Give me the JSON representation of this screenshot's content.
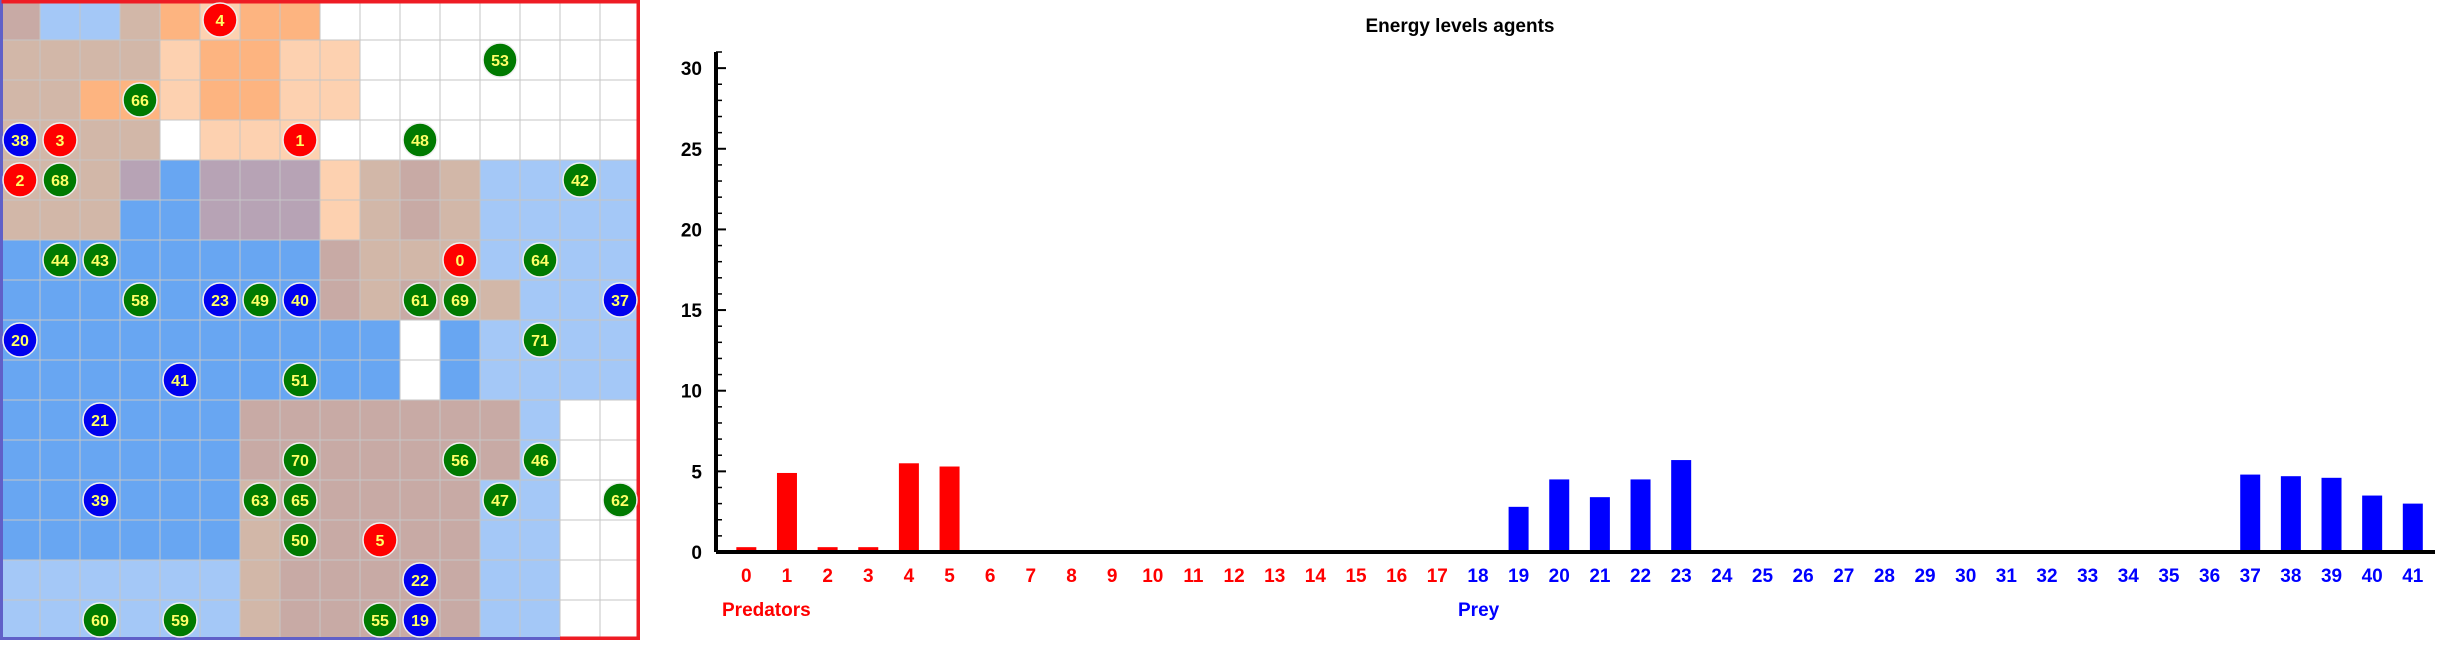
{
  "grid": {
    "rows": 16,
    "cols": 16,
    "colors": {
      "white": "#ffffff",
      "orange": "#fdb480",
      "light_orange": "#fdd1b0",
      "brown": "#d2b7a8",
      "taupe": "#c8aaa5",
      "blue": "#68a6f2",
      "light_blue": "#a4c8f7",
      "mauve": "#b7a3b5",
      "grid_line": "#c6c6c6",
      "border_red": "#ee1c24",
      "border_blue": "#6060c8",
      "predator": "#ff0000",
      "prey": "#0000ee",
      "plant": "#007a00",
      "agent_text": "#ffff66",
      "agent_outline": "#f0f0f0"
    },
    "cells": [
      "BLLTOtOOWWWWWWWW",
      "TTTTtOOttWWWWWWW",
      "TTOOtOOttWWWWWWW",
      "TTTTWtttWWWWWWWW",
      "TTTMLMMMtBbBLLLL",
      "TTTLLMMMtBbBLLLL",
      "LLLLLLLLBBBBLLLL",
      "LLLLLLLLBBbBBLLL",
      "LLLLLLLLLLWLLLLL",
      "LLLLLLLLLLWLLLLL",
      "LLLLLLBBBBBBBLWW",
      "LLLLLLBBBBBBBLWW",
      "LLLLLLTBBBBBLLWW",
      "LLLLLLTBBBBBLLWW",
      "LLLLLLTBBBBBLLWW",
      "LLLLLLTBBBBBLLWW"
    ],
    "agents": [
      {
        "id": "4",
        "kind": "predator",
        "row": 0,
        "col": 5
      },
      {
        "id": "53",
        "kind": "plant",
        "row": 1,
        "col": 12
      },
      {
        "id": "66",
        "kind": "plant",
        "row": 2,
        "col": 3
      },
      {
        "id": "38",
        "kind": "prey",
        "row": 3,
        "col": 0
      },
      {
        "id": "3",
        "kind": "predator",
        "row": 3,
        "col": 1
      },
      {
        "id": "1",
        "kind": "predator",
        "row": 3,
        "col": 7
      },
      {
        "id": "48",
        "kind": "plant",
        "row": 3,
        "col": 10
      },
      {
        "id": "2",
        "kind": "predator",
        "row": 4,
        "col": 0
      },
      {
        "id": "68",
        "kind": "plant",
        "row": 4,
        "col": 1
      },
      {
        "id": "42",
        "kind": "plant",
        "row": 4,
        "col": 14
      },
      {
        "id": "44",
        "kind": "plant",
        "row": 6,
        "col": 1
      },
      {
        "id": "43",
        "kind": "plant",
        "row": 6,
        "col": 2
      },
      {
        "id": "0",
        "kind": "predator",
        "row": 6,
        "col": 11
      },
      {
        "id": "64",
        "kind": "plant",
        "row": 6,
        "col": 13
      },
      {
        "id": "58",
        "kind": "plant",
        "row": 7,
        "col": 3
      },
      {
        "id": "23",
        "kind": "prey",
        "row": 7,
        "col": 5
      },
      {
        "id": "49",
        "kind": "plant",
        "row": 7,
        "col": 6
      },
      {
        "id": "40",
        "kind": "prey",
        "row": 7,
        "col": 7
      },
      {
        "id": "61",
        "kind": "plant",
        "row": 7,
        "col": 10
      },
      {
        "id": "69",
        "kind": "plant",
        "row": 7,
        "col": 11
      },
      {
        "id": "37",
        "kind": "prey",
        "row": 7,
        "col": 15
      },
      {
        "id": "20",
        "kind": "prey",
        "row": 8,
        "col": 0
      },
      {
        "id": "71",
        "kind": "plant",
        "row": 8,
        "col": 13
      },
      {
        "id": "41",
        "kind": "prey",
        "row": 9,
        "col": 4
      },
      {
        "id": "51",
        "kind": "plant",
        "row": 9,
        "col": 7
      },
      {
        "id": "21",
        "kind": "prey",
        "row": 10,
        "col": 2
      },
      {
        "id": "70",
        "kind": "plant",
        "row": 11,
        "col": 7
      },
      {
        "id": "56",
        "kind": "plant",
        "row": 11,
        "col": 11
      },
      {
        "id": "46",
        "kind": "plant",
        "row": 11,
        "col": 13
      },
      {
        "id": "39",
        "kind": "prey",
        "row": 12,
        "col": 2
      },
      {
        "id": "63",
        "kind": "plant",
        "row": 12,
        "col": 6
      },
      {
        "id": "65",
        "kind": "plant",
        "row": 12,
        "col": 7
      },
      {
        "id": "47",
        "kind": "plant",
        "row": 12,
        "col": 12
      },
      {
        "id": "62",
        "kind": "plant",
        "row": 12,
        "col": 15
      },
      {
        "id": "50",
        "kind": "plant",
        "row": 13,
        "col": 7
      },
      {
        "id": "5",
        "kind": "predator",
        "row": 13,
        "col": 9
      },
      {
        "id": "22",
        "kind": "prey",
        "row": 14,
        "col": 10
      },
      {
        "id": "60",
        "kind": "plant",
        "row": 15,
        "col": 2
      },
      {
        "id": "59",
        "kind": "plant",
        "row": 15,
        "col": 4
      },
      {
        "id": "55",
        "kind": "plant",
        "row": 15,
        "col": 9
      },
      {
        "id": "19",
        "kind": "prey",
        "row": 15,
        "col": 10
      }
    ]
  },
  "chart_data": {
    "type": "bar",
    "title": "Energy levels agents",
    "ylim": [
      0,
      31
    ],
    "yticks": [
      "0",
      "5",
      "10",
      "15",
      "20",
      "25",
      "30"
    ],
    "categories": [
      "0",
      "1",
      "2",
      "3",
      "4",
      "5",
      "6",
      "7",
      "8",
      "9",
      "10",
      "11",
      "12",
      "13",
      "14",
      "15",
      "16",
      "17",
      "18",
      "19",
      "20",
      "21",
      "22",
      "23",
      "24",
      "25",
      "26",
      "27",
      "28",
      "29",
      "30",
      "31",
      "32",
      "33",
      "34",
      "35",
      "36",
      "37",
      "38",
      "39",
      "40",
      "41"
    ],
    "category_groups": [
      "predator",
      "predator",
      "predator",
      "predator",
      "predator",
      "predator",
      "predator",
      "predator",
      "predator",
      "predator",
      "predator",
      "predator",
      "predator",
      "predator",
      "predator",
      "predator",
      "predator",
      "predator",
      "prey",
      "prey",
      "prey",
      "prey",
      "prey",
      "prey",
      "prey",
      "prey",
      "prey",
      "prey",
      "prey",
      "prey",
      "prey",
      "prey",
      "prey",
      "prey",
      "prey",
      "prey",
      "prey",
      "prey",
      "prey",
      "prey",
      "prey",
      "prey"
    ],
    "values": [
      0.3,
      4.9,
      0.3,
      0.3,
      5.5,
      5.3,
      0,
      0,
      0,
      0,
      0,
      0,
      0,
      0,
      0,
      0,
      0,
      0,
      0,
      2.8,
      4.5,
      3.4,
      4.5,
      5.7,
      0,
      0,
      0,
      0,
      0,
      0,
      0,
      0,
      0,
      0,
      0,
      0,
      0,
      4.8,
      4.7,
      4.6,
      3.5,
      3.0
    ],
    "group_labels": {
      "predator": "Predators",
      "prey": "Prey"
    },
    "colors": {
      "predator": "#ff0000",
      "prey": "#0000ff",
      "axis": "#000000"
    }
  }
}
